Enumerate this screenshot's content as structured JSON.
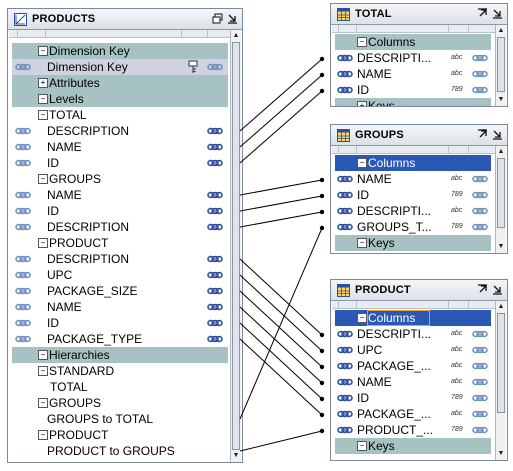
{
  "products": {
    "title": "PRODUCTS",
    "rows": [
      {
        "label": "Dimension Key",
        "kind": "section",
        "expander": "−"
      },
      {
        "label": "Dimension Key",
        "kind": "item-selected",
        "icon": "key-icon"
      },
      {
        "label": "Attributes",
        "kind": "section",
        "expander": "+"
      },
      {
        "label": "Levels",
        "kind": "section",
        "expander": "−"
      },
      {
        "label": "TOTAL",
        "kind": "group",
        "expander": "−"
      },
      {
        "label": "DESCRIPTION",
        "kind": "item"
      },
      {
        "label": "NAME",
        "kind": "item"
      },
      {
        "label": "ID",
        "kind": "item"
      },
      {
        "label": "GROUPS",
        "kind": "group",
        "expander": "−"
      },
      {
        "label": "NAME",
        "kind": "item"
      },
      {
        "label": "ID",
        "kind": "item"
      },
      {
        "label": "DESCRIPTION",
        "kind": "item"
      },
      {
        "label": "PRODUCT",
        "kind": "group",
        "expander": "−"
      },
      {
        "label": "DESCRIPTION",
        "kind": "item"
      },
      {
        "label": "UPC",
        "kind": "item"
      },
      {
        "label": "PACKAGE_SIZE",
        "kind": "item"
      },
      {
        "label": "NAME",
        "kind": "item"
      },
      {
        "label": "ID",
        "kind": "item"
      },
      {
        "label": "PACKAGE_TYPE",
        "kind": "item"
      },
      {
        "label": "Hierarchies",
        "kind": "section",
        "expander": "−"
      },
      {
        "label": "STANDARD",
        "kind": "group",
        "expander": "−"
      },
      {
        "label": "TOTAL",
        "kind": "leaf"
      },
      {
        "label": "GROUPS",
        "kind": "group",
        "expander": "−"
      },
      {
        "label": "GROUPS to TOTAL",
        "kind": "leaf"
      },
      {
        "label": "PRODUCT",
        "kind": "group",
        "expander": "−"
      },
      {
        "label": "PRODUCT to GROUPS",
        "kind": "leaf"
      }
    ]
  },
  "tables": [
    {
      "title": "TOTAL",
      "rows": [
        {
          "label": "Columns",
          "kind": "section",
          "expander": "−"
        },
        {
          "label": "DESCRIPTI...",
          "kind": "col",
          "type": "abc"
        },
        {
          "label": "NAME",
          "kind": "col",
          "type": "abc"
        },
        {
          "label": "ID",
          "kind": "col",
          "type": "789"
        },
        {
          "label": "Keys",
          "kind": "section",
          "expander": "+"
        }
      ]
    },
    {
      "title": "GROUPS",
      "rows": [
        {
          "label": "Columns",
          "kind": "section-pk",
          "expander": "−"
        },
        {
          "label": "NAME",
          "kind": "col",
          "type": "abc"
        },
        {
          "label": "ID",
          "kind": "col",
          "type": "789"
        },
        {
          "label": "DESCRIPTI...",
          "kind": "col",
          "type": "abc"
        },
        {
          "label": "GROUPS_T...",
          "kind": "col",
          "type": "789"
        },
        {
          "label": "Keys",
          "kind": "section",
          "expander": "−"
        }
      ]
    },
    {
      "title": "PRODUCT",
      "rows": [
        {
          "label": "Columns",
          "kind": "section-pk-outlined",
          "expander": "−"
        },
        {
          "label": "DESCRIPTI...",
          "kind": "col",
          "type": "abc"
        },
        {
          "label": "UPC",
          "kind": "col",
          "type": "abc"
        },
        {
          "label": "PACKAGE_...",
          "kind": "col",
          "type": "abc"
        },
        {
          "label": "NAME",
          "kind": "col",
          "type": "abc"
        },
        {
          "label": "ID",
          "kind": "col",
          "type": "789"
        },
        {
          "label": "PACKAGE_...",
          "kind": "col",
          "type": "abc"
        },
        {
          "label": "PRODUCT_...",
          "kind": "col",
          "type": "789"
        },
        {
          "label": "Keys",
          "kind": "section",
          "expander": "−"
        }
      ]
    }
  ],
  "colors": {
    "section": "#a7c2c2",
    "selected_pk": "#2a58b4",
    "link_icon": "#2a4fa0",
    "connector": "#000000"
  },
  "icons": {
    "products_title": "dimension-icon",
    "table_title": "table-icon",
    "column_link": "link-chain-icon"
  }
}
